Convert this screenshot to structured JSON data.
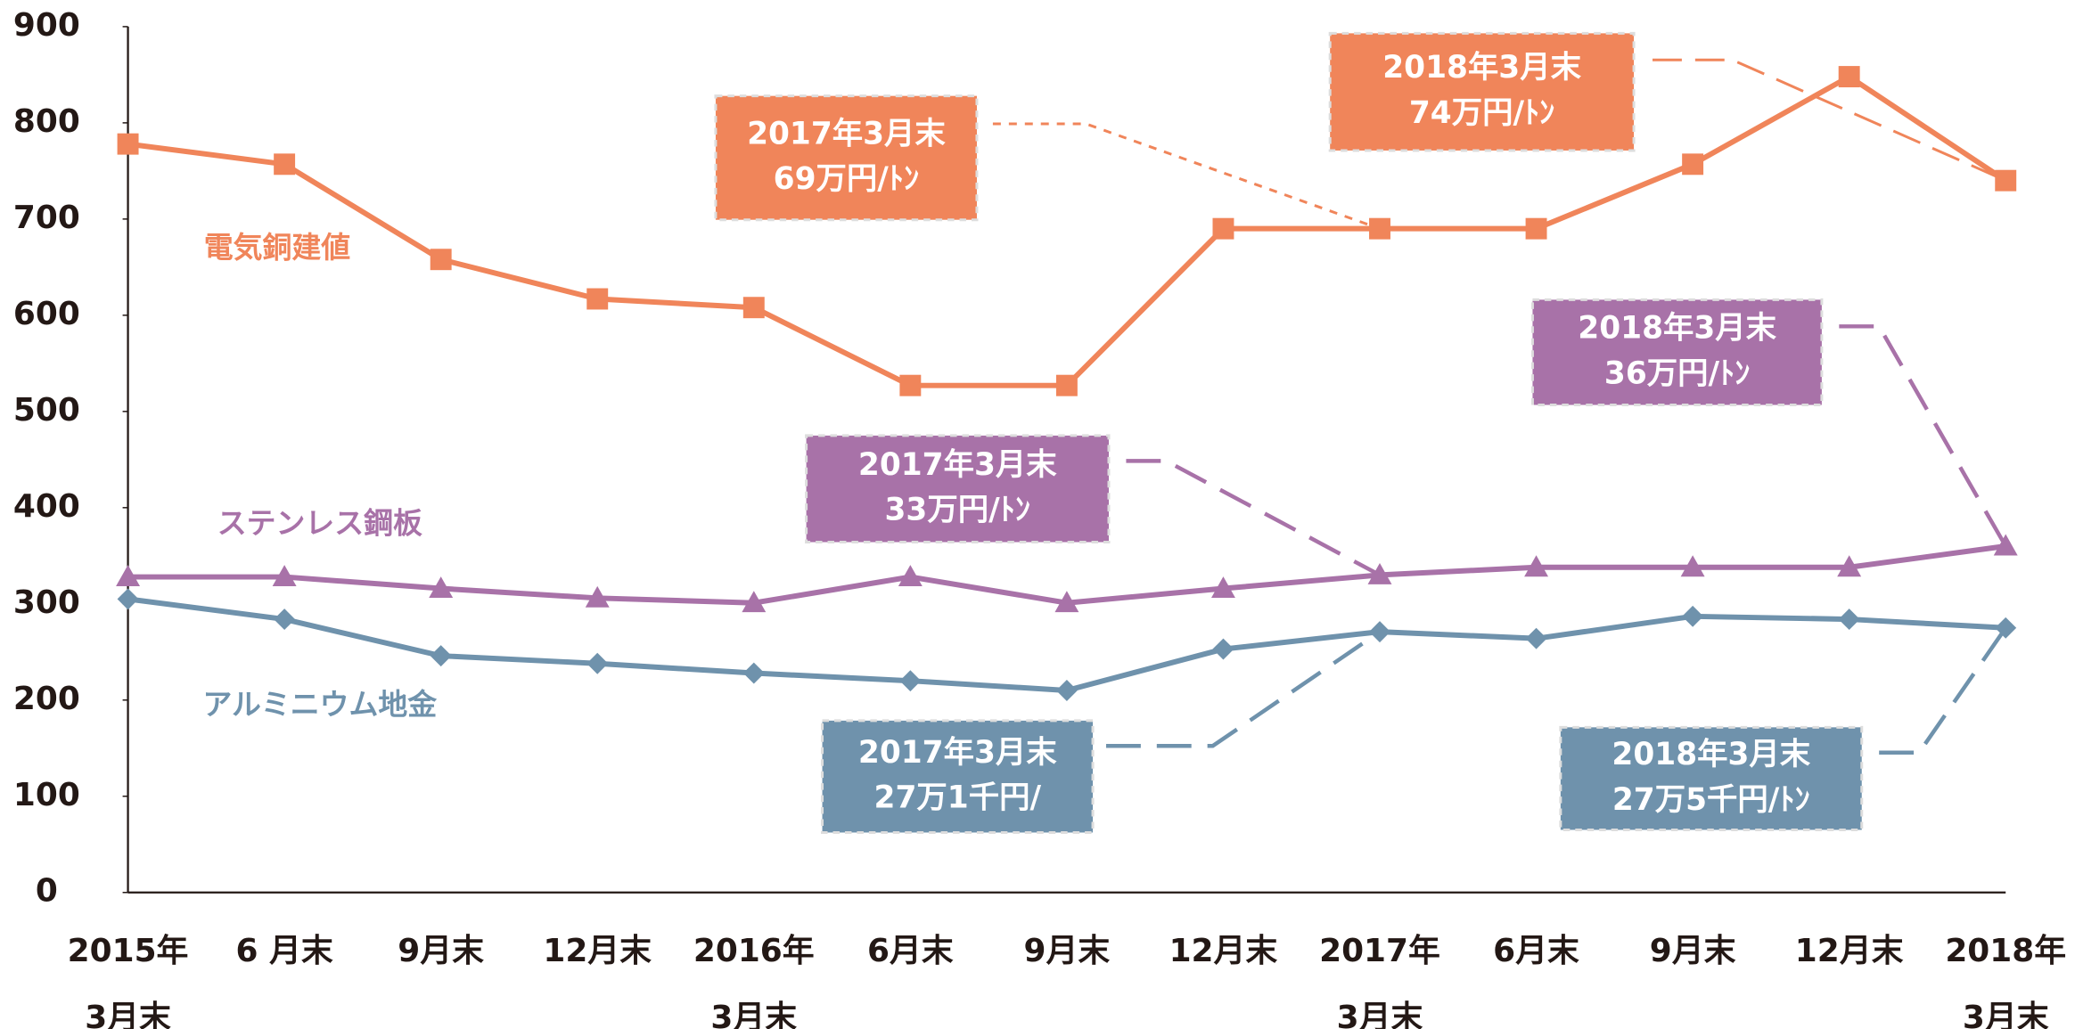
{
  "chart_data": {
    "type": "line",
    "categories": [
      [
        "2015年",
        "3月末"
      ],
      [
        "6 月末"
      ],
      [
        "9月末"
      ],
      [
        "12月末"
      ],
      [
        "2016年",
        "3月末"
      ],
      [
        "6月末"
      ],
      [
        "9月末"
      ],
      [
        "12月末"
      ],
      [
        "2017年",
        "3月末"
      ],
      [
        "6月末"
      ],
      [
        "9月末"
      ],
      [
        "12月末"
      ],
      [
        "2018年",
        "3月末"
      ]
    ],
    "series": [
      {
        "name": "電気銅建値",
        "color": "#f0855a",
        "marker": "square",
        "values": [
          778,
          757,
          658,
          617,
          608,
          527,
          527,
          690,
          690,
          690,
          757,
          848,
          740
        ]
      },
      {
        "name": "ステンレス鋼板",
        "color": "#a872a8",
        "marker": "triangle",
        "values": [
          328,
          328,
          316,
          306,
          301,
          328,
          301,
          316,
          330,
          338,
          338,
          338,
          360
        ]
      },
      {
        "name": "アルミニウム地金",
        "color": "#6f92ac",
        "marker": "diamond",
        "values": [
          305,
          284,
          246,
          238,
          228,
          220,
          210,
          253,
          271,
          264,
          287,
          284,
          275
        ]
      }
    ],
    "annotations": [
      [
        "2017年3月末",
        "69万円/ﾄﾝ"
      ],
      [
        "2018年3月末",
        "74万円/ﾄﾝ"
      ],
      [
        "2018年3月末",
        "36万円/ﾄﾝ"
      ],
      [
        "2017年3月末",
        "33万円/ﾄﾝ"
      ],
      [
        "2017年3月末",
        "27万1千円/"
      ],
      [
        "2018年3月末",
        "27万5千円/ﾄﾝ"
      ]
    ],
    "ylim": [
      0,
      900
    ],
    "yticks": [
      0,
      100,
      200,
      300,
      400,
      500,
      600,
      700,
      800,
      900
    ],
    "grid": false
  }
}
